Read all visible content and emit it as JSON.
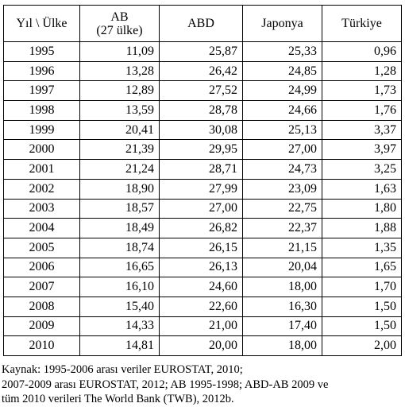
{
  "table": {
    "header": [
      "Yıl \\ Ülke",
      "AB\n(27 ülke)",
      "ABD",
      "Japonya",
      "Türkiye"
    ],
    "rows": [
      [
        "1995",
        "11,09",
        "25,87",
        "25,33",
        "0,96"
      ],
      [
        "1996",
        "13,28",
        "26,42",
        "24,85",
        "1,28"
      ],
      [
        "1997",
        "12,89",
        "27,52",
        "24,99",
        "1,73"
      ],
      [
        "1998",
        "13,59",
        "28,78",
        "24,66",
        "1,76"
      ],
      [
        "1999",
        "20,41",
        "30,08",
        "25,13",
        "3,37"
      ],
      [
        "2000",
        "21,39",
        "29,95",
        "27,00",
        "3,97"
      ],
      [
        "2001",
        "21,24",
        "28,71",
        "24,73",
        "3,25"
      ],
      [
        "2002",
        "18,90",
        "27,99",
        "23,09",
        "1,63"
      ],
      [
        "2003",
        "18,57",
        "27,00",
        "22,75",
        "1,80"
      ],
      [
        "2004",
        "18,49",
        "26,82",
        "22,37",
        "1,88"
      ],
      [
        "2005",
        "18,74",
        "26,15",
        "21,15",
        "1,35"
      ],
      [
        "2006",
        "16,65",
        "26,13",
        "20,04",
        "1,65"
      ],
      [
        "2007",
        "16,10",
        "24,60",
        "18,00",
        "1,70"
      ],
      [
        "2008",
        "15,40",
        "22,60",
        "16,30",
        "1,50"
      ],
      [
        "2009",
        "14,33",
        "21,00",
        "17,40",
        "1,50"
      ],
      [
        "2010",
        "14,81",
        "20,00",
        "18,00",
        "2,00"
      ]
    ]
  },
  "note": [
    "Kaynak: 1995-2006 arası veriler EUROSTAT, 2010;",
    "2007-2009 arası EUROSTAT,  2012; AB 1995-1998; ABD-AB 2009 ve",
    "tüm 2010 verileri The World Bank (TWB), 2012b."
  ]
}
